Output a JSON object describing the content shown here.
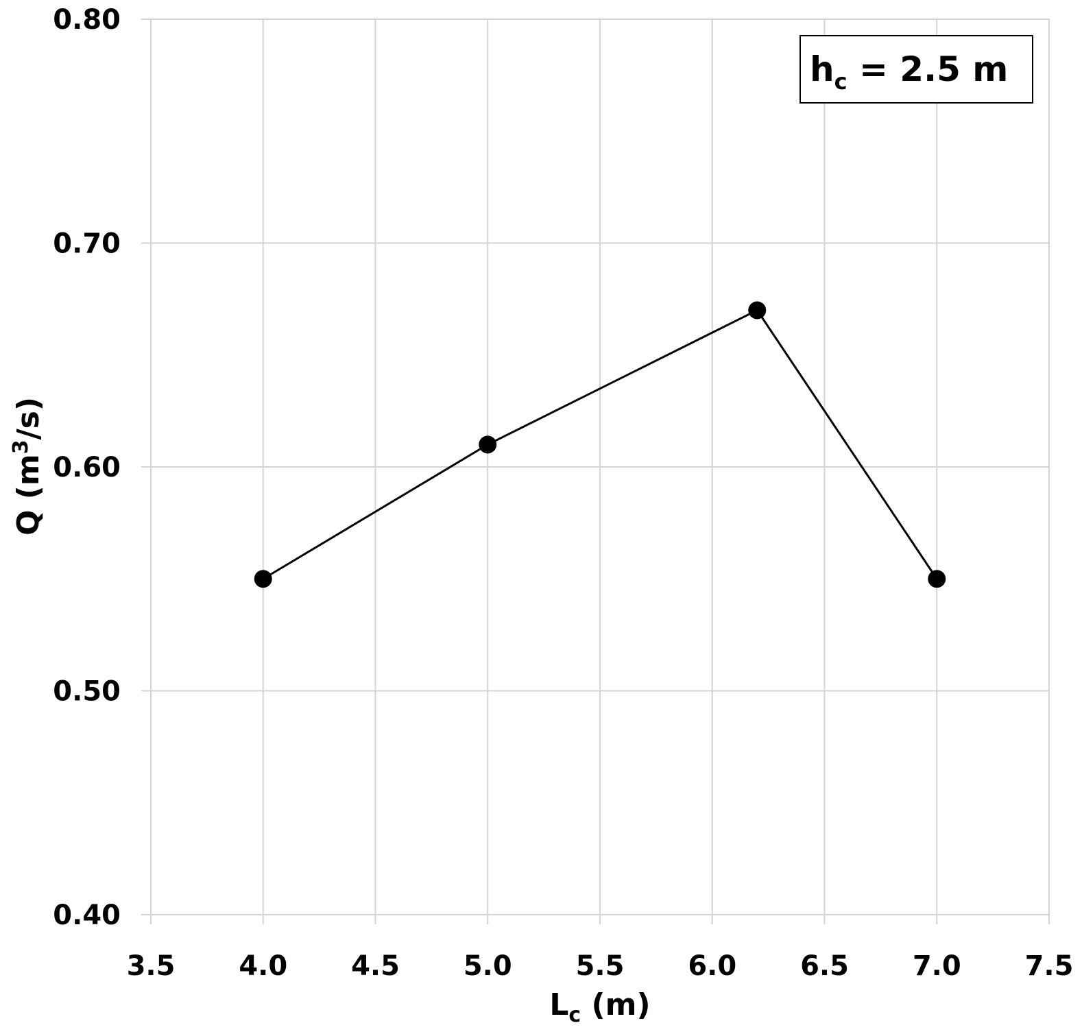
{
  "chart_data": {
    "type": "line",
    "x": [
      4.0,
      5.0,
      6.2,
      7.0
    ],
    "series": [
      {
        "values": [
          0.55,
          0.61,
          0.67,
          0.55
        ]
      }
    ],
    "xlim": [
      3.5,
      7.5
    ],
    "ylim": [
      0.4,
      0.8
    ],
    "xticks": [
      "3.5",
      "4.0",
      "4.5",
      "5.0",
      "5.5",
      "6.0",
      "6.5",
      "7.0",
      "7.5"
    ],
    "yticks": [
      "0.40",
      "0.50",
      "0.60",
      "0.70",
      "0.80"
    ],
    "xlabel": {
      "main": "L",
      "sub": "c",
      "unit": " (m)"
    },
    "ylabel": {
      "main": "Q (m",
      "sup": "3",
      "unit": "/s)"
    },
    "annotation": {
      "main": "h",
      "sub": "c",
      "rest": " = 2.5 m",
      "position": "top-right"
    },
    "grid": true,
    "line_color": "#000000",
    "marker_color": "#000000",
    "grid_color": "#d4d4d4"
  }
}
